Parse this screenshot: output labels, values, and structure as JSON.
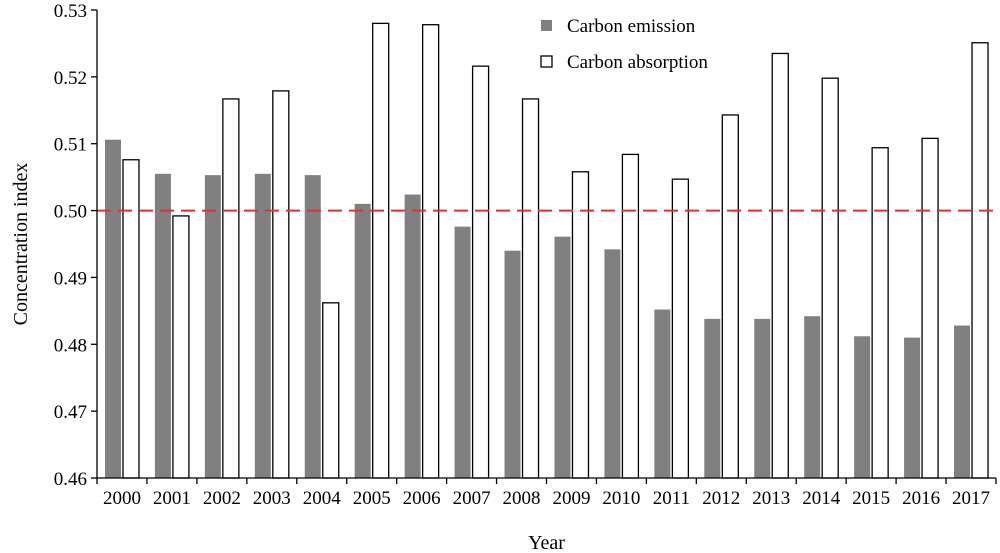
{
  "chart_data": {
    "type": "bar",
    "title": "",
    "xlabel": "Year",
    "ylabel": "Concentration index",
    "ylim": [
      0.46,
      0.53
    ],
    "yticks": [
      "0.46",
      "0.47",
      "0.48",
      "0.49",
      "0.50",
      "0.51",
      "0.52",
      "0.53"
    ],
    "categories": [
      "2000",
      "2001",
      "2002",
      "2003",
      "2004",
      "2005",
      "2006",
      "2007",
      "2008",
      "2009",
      "2010",
      "2011",
      "2012",
      "2013",
      "2014",
      "2015",
      "2016",
      "2017"
    ],
    "series": [
      {
        "name": "Carbon emission",
        "color": "#808080",
        "values": [
          0.5106,
          0.5055,
          0.5053,
          0.5055,
          0.5053,
          0.501,
          0.5024,
          0.4976,
          0.494,
          0.4961,
          0.4942,
          0.4852,
          0.4838,
          0.4838,
          0.4842,
          0.4812,
          0.481,
          0.4828
        ]
      },
      {
        "name": "Carbon absorption",
        "color": "#ffffff",
        "values": [
          0.5076,
          0.4992,
          0.5167,
          0.5179,
          0.4862,
          0.528,
          0.5278,
          0.5216,
          0.5167,
          0.5058,
          0.5084,
          0.5047,
          0.5143,
          0.5235,
          0.5198,
          0.5094,
          0.5108,
          0.5251
        ]
      }
    ],
    "reference_line": {
      "value": 0.5,
      "color": "#e0312f",
      "style": "dashed"
    },
    "legend": {
      "position": "top-center"
    },
    "grid": false
  }
}
